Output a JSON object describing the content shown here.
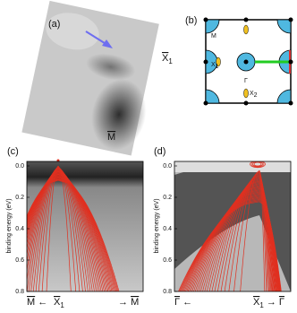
{
  "panel_a": {
    "label": "(a)",
    "x1": {
      "text": "X",
      "sub": "1"
    },
    "m": {
      "text": "M"
    }
  },
  "panel_b": {
    "label": "(b)",
    "m": {
      "text": "M"
    },
    "x1": {
      "text": "X",
      "sub": "1"
    },
    "gamma": {
      "text": "Γ"
    },
    "x2": {
      "text": "X",
      "sub": "2"
    }
  },
  "panel_c": {
    "label": "(c)",
    "y_label": "binding energy (eV)",
    "y_ticks": [
      "0.0",
      "0.2",
      "0.4",
      "0.6",
      "0.8"
    ],
    "x_labels": [
      {
        "text": "M"
      },
      {
        "text": "←"
      },
      {
        "text": "X",
        "sub": "1"
      },
      {
        "text": "→"
      },
      {
        "text": "M"
      }
    ]
  },
  "panel_d": {
    "label": "(d)",
    "y_label": "binding energy (eV)",
    "y_ticks": [
      "0.0",
      "0.2",
      "0.4",
      "0.6",
      "0.8"
    ],
    "x_labels": [
      {
        "text": "Γ"
      },
      {
        "text": "←"
      },
      {
        "text": "X",
        "sub": "1"
      },
      {
        "text": "→"
      },
      {
        "text": "Γ"
      }
    ]
  }
}
